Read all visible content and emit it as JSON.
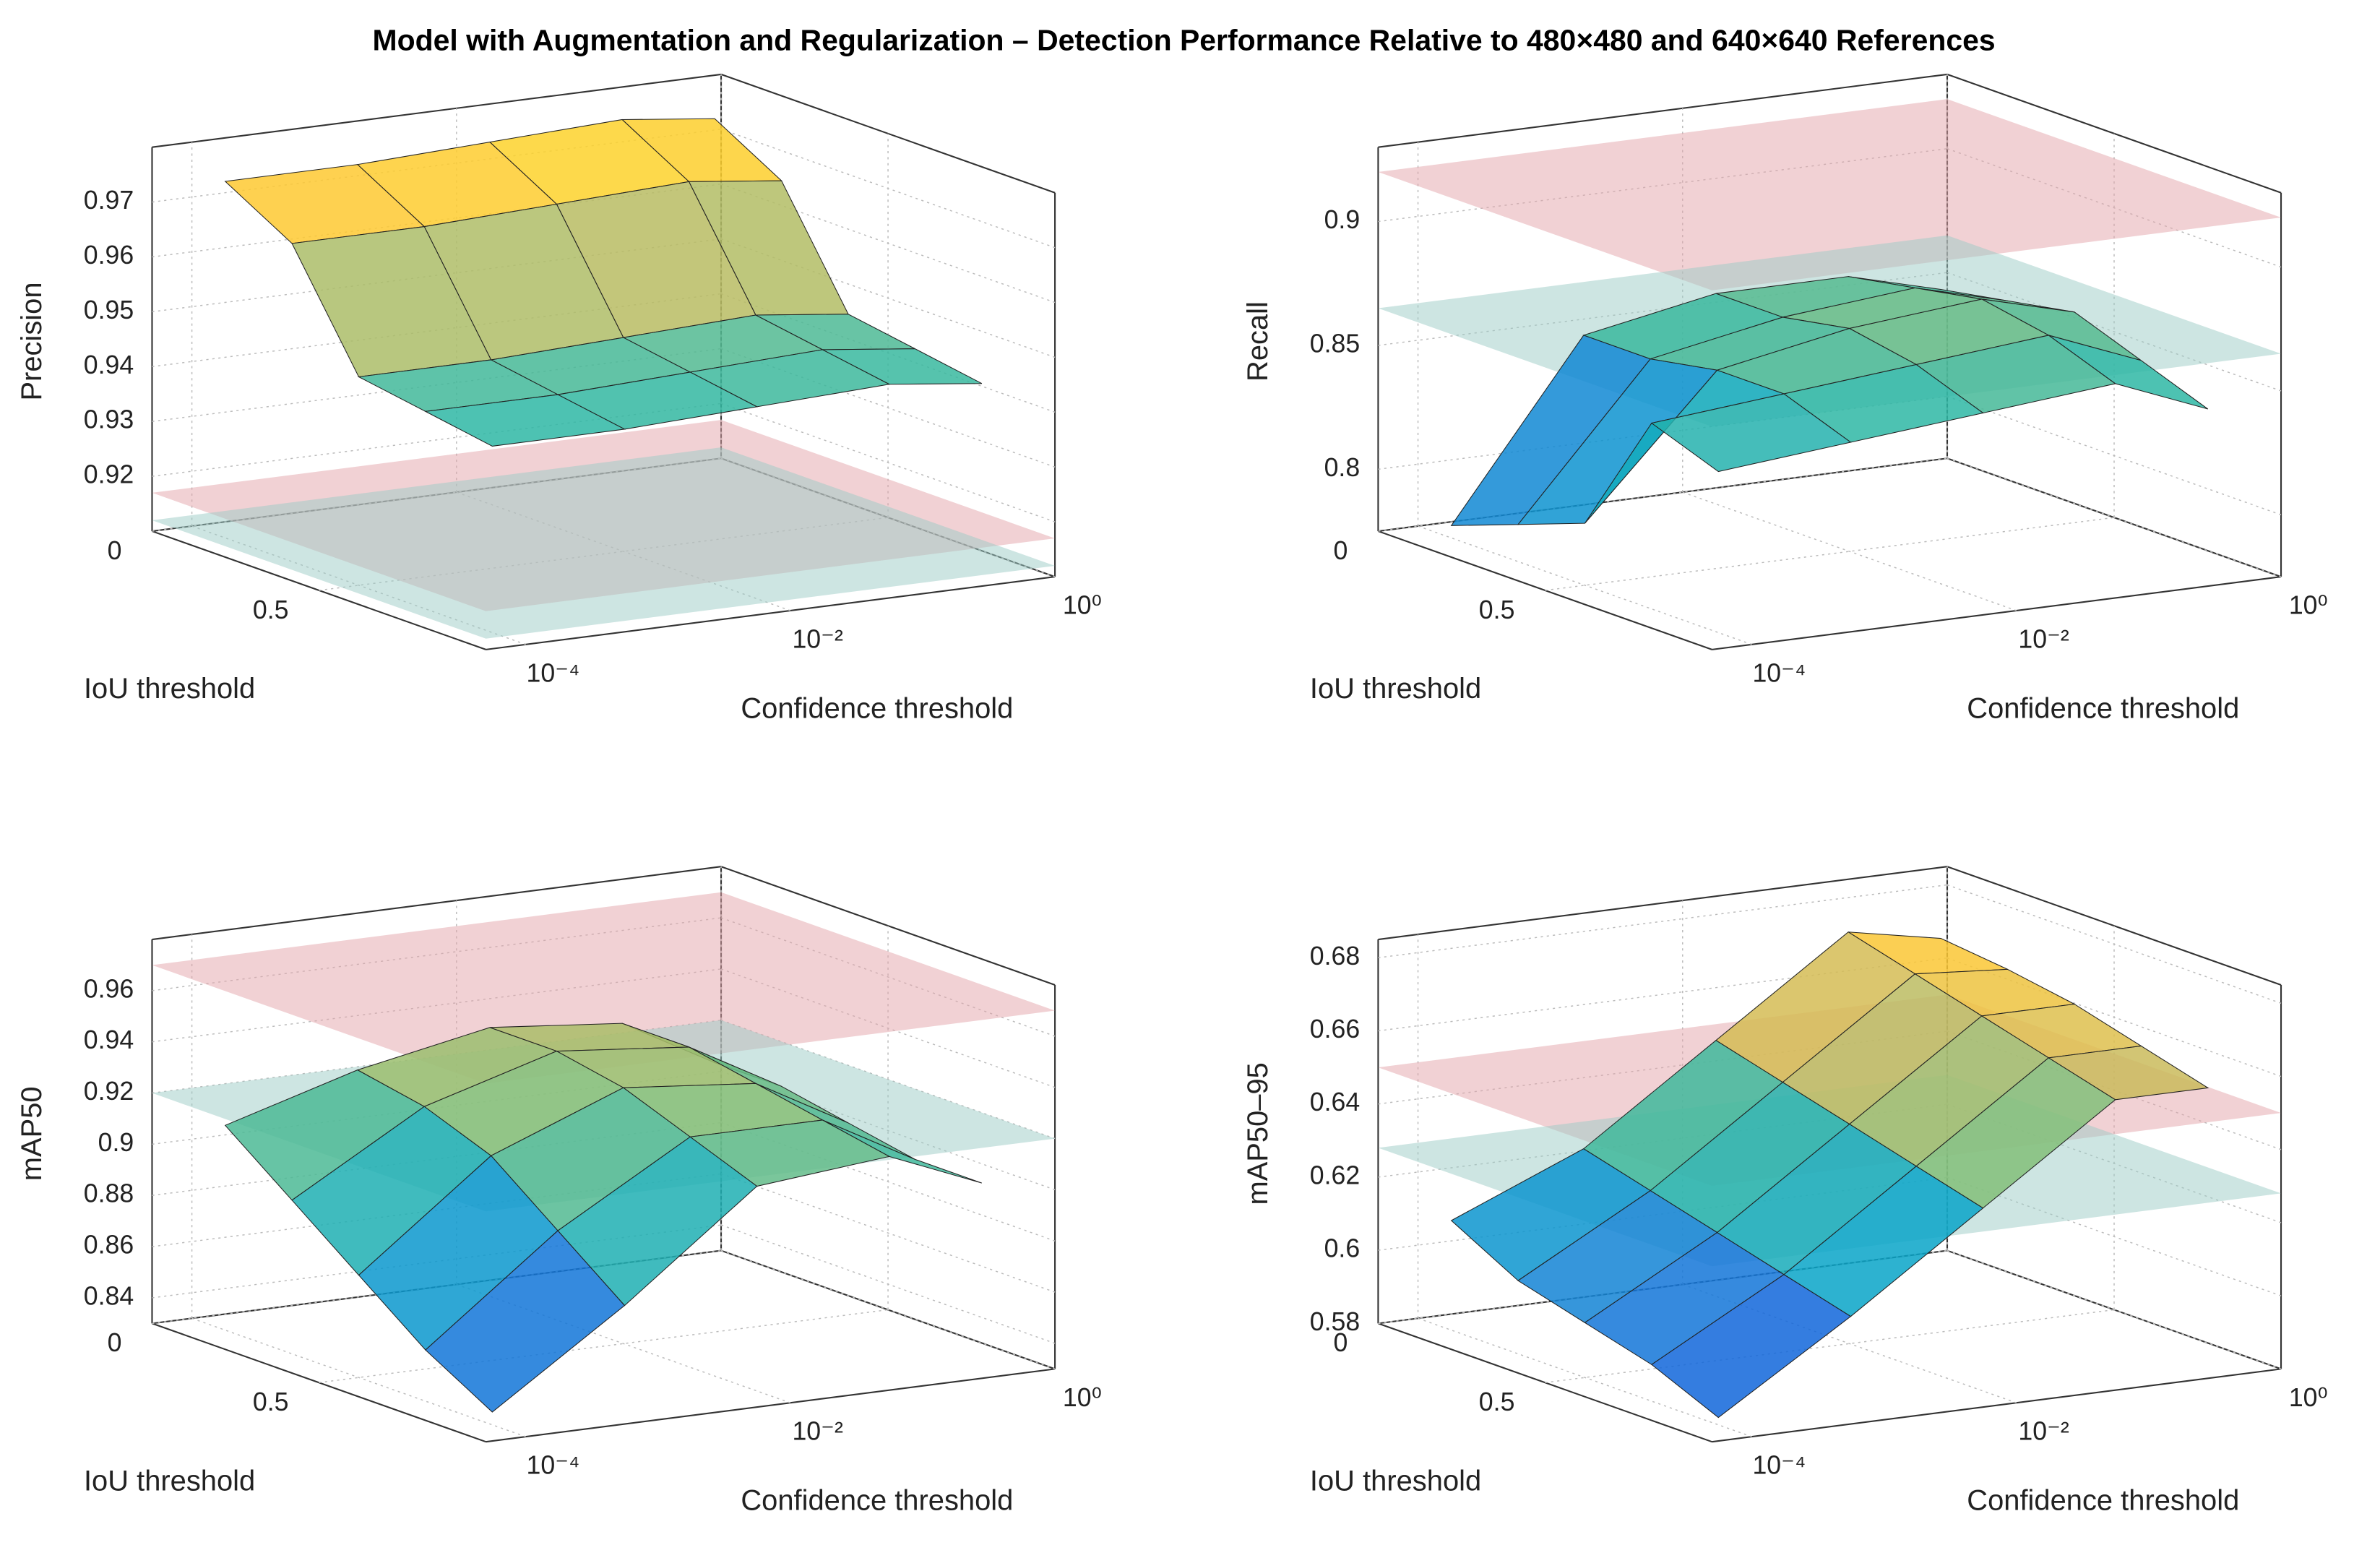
{
  "title": "Model with Augmentation and Regularization – Detection Performance Relative to 480×480 and 640×640 References",
  "chart_data": [
    {
      "type": "surface",
      "zlabel": "Precision",
      "xlabel": "IoU threshold",
      "ylabel": "Confidence threshold",
      "x": [
        0.1,
        0.3,
        0.5,
        0.7,
        0.9
      ],
      "y": [
        0.0001,
        0.001,
        0.01,
        0.1,
        0.5
      ],
      "z": [
        [
          0.975,
          0.975,
          0.976,
          0.977,
          0.975
        ],
        [
          0.968,
          0.968,
          0.969,
          0.97,
          0.968
        ],
        [
          0.948,
          0.948,
          0.949,
          0.95,
          0.948
        ],
        [
          0.946,
          0.946,
          0.947,
          0.948,
          0.946
        ],
        [
          0.944,
          0.944,
          0.945,
          0.946,
          0.944
        ]
      ],
      "xlim": [
        0,
        1
      ],
      "ylim": [
        5e-05,
        1
      ],
      "zlim": [
        0.91,
        0.98
      ],
      "yscale": "log",
      "grid": true,
      "xticks": [
        0,
        0.5
      ],
      "yticks": [
        {
          "value": 0.0001,
          "label": "10⁻⁴"
        },
        {
          "value": 0.01,
          "label": "10⁻²"
        },
        {
          "value": 1,
          "label": "10⁰"
        }
      ],
      "zticks": [
        0.92,
        0.93,
        0.94,
        0.95,
        0.96,
        0.97
      ],
      "planes": [
        {
          "value": 0.917,
          "color": "#e3a3aa"
        },
        {
          "value": 0.912,
          "color": "#9ccbc6"
        }
      ]
    },
    {
      "type": "surface",
      "zlabel": "Recall",
      "xlabel": "IoU threshold",
      "ylabel": "Confidence threshold",
      "x": [
        0.1,
        0.3,
        0.5,
        0.7,
        0.9
      ],
      "y": [
        0.0001,
        0.001,
        0.01,
        0.1,
        0.5
      ],
      "z": [
        [
          0.78,
          0.85,
          0.86,
          0.86,
          0.85
        ],
        [
          0.79,
          0.85,
          0.86,
          0.865,
          0.855
        ],
        [
          0.8,
          0.855,
          0.865,
          0.87,
          0.86
        ],
        [
          0.85,
          0.855,
          0.86,
          0.865,
          0.85
        ],
        [
          0.84,
          0.845,
          0.85,
          0.855,
          0.84
        ]
      ],
      "xlim": [
        0,
        1
      ],
      "ylim": [
        5e-05,
        1
      ],
      "zlim": [
        0.775,
        0.93
      ],
      "yscale": "log",
      "grid": true,
      "xticks": [
        0,
        0.5
      ],
      "yticks": [
        {
          "value": 0.0001,
          "label": "10⁻⁴"
        },
        {
          "value": 0.01,
          "label": "10⁻²"
        },
        {
          "value": 1,
          "label": "10⁰"
        }
      ],
      "zticks": [
        0.8,
        0.85,
        0.9
      ],
      "planes": [
        {
          "value": 0.92,
          "color": "#e3a3aa"
        },
        {
          "value": 0.865,
          "color": "#9ccbc6"
        }
      ]
    },
    {
      "type": "surface",
      "zlabel": "mAP50",
      "xlabel": "IoU threshold",
      "ylabel": "Confidence threshold",
      "x": [
        0.1,
        0.3,
        0.5,
        0.7,
        0.9
      ],
      "y": [
        0.0001,
        0.001,
        0.01,
        0.1,
        0.5
      ],
      "z": [
        [
          0.91,
          0.925,
          0.935,
          0.93,
          0.91
        ],
        [
          0.89,
          0.92,
          0.935,
          0.93,
          0.91
        ],
        [
          0.87,
          0.91,
          0.93,
          0.925,
          0.905
        ],
        [
          0.85,
          0.89,
          0.92,
          0.92,
          0.9
        ],
        [
          0.835,
          0.87,
          0.91,
          0.915,
          0.9
        ]
      ],
      "xlim": [
        0,
        1
      ],
      "ylim": [
        5e-05,
        1
      ],
      "zlim": [
        0.83,
        0.98
      ],
      "yscale": "log",
      "grid": true,
      "xticks": [
        0,
        0.5
      ],
      "yticks": [
        {
          "value": 0.0001,
          "label": "10⁻⁴"
        },
        {
          "value": 0.01,
          "label": "10⁻²"
        },
        {
          "value": 1,
          "label": "10⁰"
        }
      ],
      "zticks": [
        0.84,
        0.86,
        0.88,
        0.9,
        0.92,
        0.94,
        0.96
      ],
      "planes": [
        {
          "value": 0.97,
          "color": "#e3a3aa"
        },
        {
          "value": 0.92,
          "color": "#9ccbc6"
        }
      ]
    },
    {
      "type": "surface",
      "zlabel": "mAP50–95",
      "xlabel": "IoU threshold",
      "ylabel": "Confidence threshold",
      "x": [
        0.1,
        0.3,
        0.5,
        0.7,
        0.9
      ],
      "y": [
        0.0001,
        0.001,
        0.01,
        0.1,
        0.5
      ],
      "z": [
        [
          0.61,
          0.625,
          0.65,
          0.675,
          0.67
        ],
        [
          0.6,
          0.62,
          0.645,
          0.67,
          0.668
        ],
        [
          0.595,
          0.615,
          0.64,
          0.665,
          0.665
        ],
        [
          0.59,
          0.61,
          0.635,
          0.66,
          0.66
        ],
        [
          0.582,
          0.605,
          0.63,
          0.655,
          0.655
        ]
      ],
      "xlim": [
        0,
        1
      ],
      "ylim": [
        5e-05,
        1
      ],
      "zlim": [
        0.58,
        0.685
      ],
      "yscale": "log",
      "grid": true,
      "xticks": [
        0,
        0.5
      ],
      "yticks": [
        {
          "value": 0.0001,
          "label": "10⁻⁴"
        },
        {
          "value": 0.01,
          "label": "10⁻²"
        },
        {
          "value": 1,
          "label": "10⁰"
        }
      ],
      "zticks": [
        0.58,
        0.6,
        0.62,
        0.64,
        0.66,
        0.68
      ],
      "planes": [
        {
          "value": 0.65,
          "color": "#e3a3aa"
        },
        {
          "value": 0.628,
          "color": "#9ccbc6"
        }
      ]
    }
  ]
}
